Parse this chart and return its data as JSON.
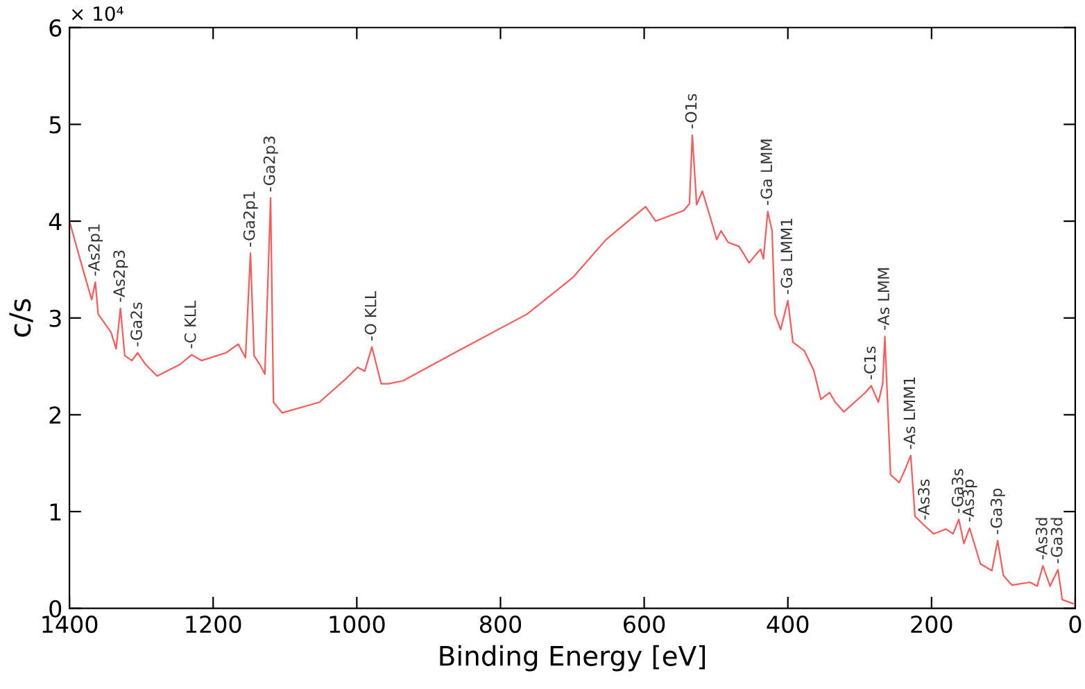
{
  "chart_data": {
    "type": "line",
    "xlabel": "Binding Energy [eV]",
    "ylabel": "c/s",
    "xlim": [
      1400,
      0
    ],
    "xticks": [
      1400,
      1200,
      1000,
      800,
      600,
      400,
      200,
      0
    ],
    "ylim": [
      0,
      6
    ],
    "yticks": [
      0,
      1,
      2,
      3,
      4,
      5,
      6
    ],
    "grid": false,
    "series": [
      {
        "color": "#ff5a5a",
        "x": [
          1400,
          1380,
          1369,
          1364,
          1360,
          1342,
          1335,
          1329,
          1323,
          1313,
          1305,
          1294,
          1278,
          1246,
          1230,
          1216,
          1182,
          1165,
          1155,
          1148,
          1143,
          1135,
          1128,
          1120,
          1116,
          1104,
          1052,
          1014,
          999,
          989,
          979,
          966,
          956,
          936,
          859,
          763,
          699,
          653,
          598,
          584,
          570,
          545,
          537,
          533,
          527,
          519,
          508,
          499,
          493,
          483,
          468,
          454,
          438,
          434,
          428,
          422,
          418,
          410,
          400,
          393,
          377,
          364,
          354,
          342,
          334,
          322,
          292,
          284,
          274,
          268,
          265,
          257,
          245,
          236,
          229,
          223,
          209,
          197,
          180,
          170,
          162,
          155,
          147,
          132,
          116,
          108,
          100,
          88,
          63,
          53,
          45,
          35,
          24,
          18,
          3
        ],
        "values": [
          4.0,
          3.47,
          3.19,
          3.37,
          3.04,
          2.85,
          2.68,
          3.1,
          2.61,
          2.56,
          2.64,
          2.52,
          2.4,
          2.52,
          2.62,
          2.56,
          2.64,
          2.73,
          2.59,
          3.67,
          2.61,
          2.52,
          2.42,
          4.24,
          2.13,
          2.02,
          2.13,
          2.38,
          2.49,
          2.45,
          2.7,
          2.32,
          2.32,
          2.35,
          2.66,
          3.04,
          3.42,
          3.81,
          4.15,
          4.0,
          4.04,
          4.11,
          4.18,
          4.89,
          4.17,
          4.31,
          4.04,
          3.81,
          3.9,
          3.78,
          3.74,
          3.57,
          3.71,
          3.61,
          4.1,
          3.9,
          3.04,
          2.88,
          3.18,
          2.75,
          2.66,
          2.46,
          2.16,
          2.23,
          2.13,
          2.03,
          2.23,
          2.3,
          2.13,
          2.32,
          2.81,
          1.38,
          1.3,
          1.45,
          1.58,
          0.95,
          0.85,
          0.77,
          0.82,
          0.77,
          0.92,
          0.67,
          0.83,
          0.46,
          0.39,
          0.7,
          0.34,
          0.24,
          0.27,
          0.23,
          0.44,
          0.23,
          0.4,
          0.09,
          0.05
        ]
      }
    ],
    "annotations": [
      "× 10⁴",
      {
        "text": "-As2p1",
        "x": 1364,
        "y": 3.37
      },
      {
        "text": "-As2p3",
        "x": 1329,
        "y": 3.1
      },
      {
        "text": "-Ga2s",
        "x": 1305,
        "y": 2.64
      },
      {
        "text": "-C KLL",
        "x": 1230,
        "y": 2.62
      },
      {
        "text": "-Ga2p1",
        "x": 1148,
        "y": 3.67
      },
      {
        "text": "-Ga2p3",
        "x": 1120,
        "y": 4.24
      },
      {
        "text": "-O KLL",
        "x": 979,
        "y": 2.7
      },
      {
        "text": "-O1s",
        "x": 533,
        "y": 4.89
      },
      {
        "text": "-Ga LMM",
        "x": 428,
        "y": 4.1
      },
      {
        "text": "-Ga LMM1",
        "x": 400,
        "y": 3.18
      },
      {
        "text": "-C1s",
        "x": 284,
        "y": 2.3
      },
      {
        "text": "-As LMM",
        "x": 265,
        "y": 2.81
      },
      {
        "text": "-As LMM1",
        "x": 229,
        "y": 1.58
      },
      {
        "text": "-As3s",
        "x": 209,
        "y": 0.85
      },
      {
        "text": "-Ga3s",
        "x": 162,
        "y": 0.92
      },
      {
        "text": "-As3p",
        "x": 147,
        "y": 0.83
      },
      {
        "text": "-Ga3p",
        "x": 108,
        "y": 0.7
      },
      {
        "text": "-As3d",
        "x": 45,
        "y": 0.44
      },
      {
        "text": "-Ga3d",
        "x": 24,
        "y": 0.4
      }
    ]
  }
}
